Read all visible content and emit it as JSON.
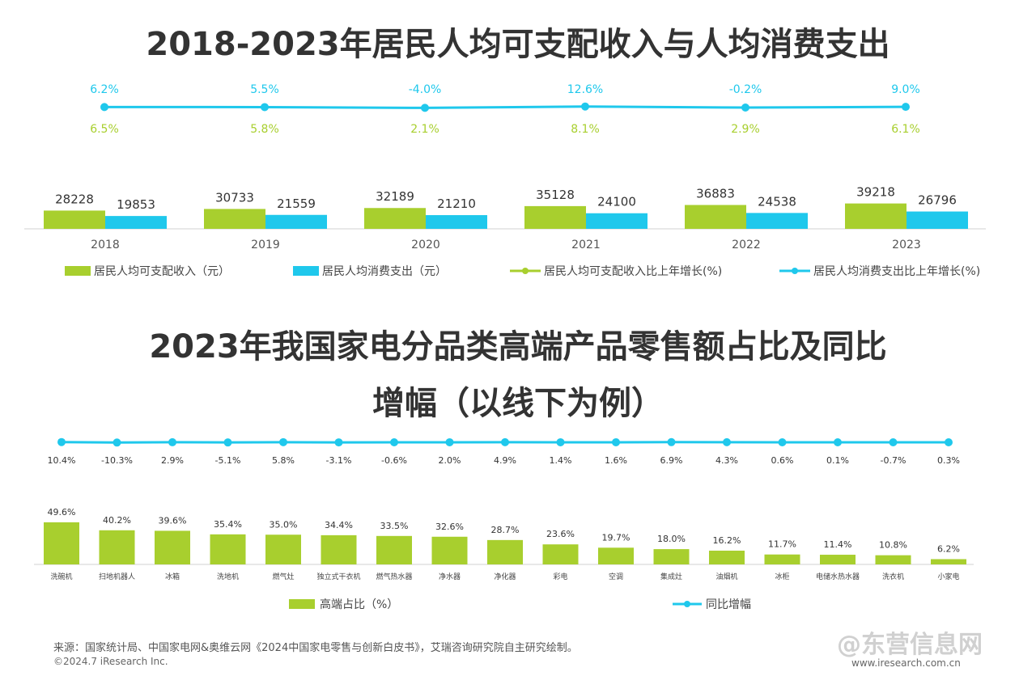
{
  "colors": {
    "green": "#a8cf2e",
    "blue": "#1fc8ec",
    "text": "#333333",
    "axis": "#d0d0d0"
  },
  "chart_data": [
    {
      "type": "bar",
      "title": "2018-2023年居民人均可支配收入与人均消费支出",
      "categories": [
        "2018",
        "2019",
        "2020",
        "2021",
        "2022",
        "2023"
      ],
      "series": [
        {
          "name": "居民人均可支配收入（元）",
          "kind": "bar",
          "color": "#a8cf2e",
          "values": [
            28228,
            30733,
            32189,
            35128,
            36883,
            39218
          ]
        },
        {
          "name": "居民人均消费支出（元）",
          "kind": "bar",
          "color": "#1fc8ec",
          "values": [
            19853,
            21559,
            21210,
            24100,
            24538,
            26796
          ]
        },
        {
          "name": "居民人均可支配收入比上年增长(%)",
          "kind": "line",
          "color": "#a8cf2e",
          "values": [
            6.5,
            5.8,
            2.1,
            8.1,
            2.9,
            6.1
          ],
          "labels": [
            "6.5%",
            "5.8%",
            "2.1%",
            "8.1%",
            "2.9%",
            "6.1%"
          ]
        },
        {
          "name": "居民人均消费支出比上年增长(%)",
          "kind": "line",
          "color": "#1fc8ec",
          "values": [
            6.2,
            5.5,
            -4.0,
            12.6,
            -0.2,
            9.0
          ],
          "labels": [
            "6.2%",
            "5.5%",
            "-4.0%",
            "12.6%",
            "-0.2%",
            "9.0%"
          ]
        }
      ],
      "legend": "bottom"
    },
    {
      "type": "bar",
      "title": "2023年我国家电分品类高端产品零售额占比及同比增幅（以线下为例）",
      "categories": [
        "洗碗机",
        "扫地机器人",
        "冰箱",
        "洗地机",
        "燃气灶",
        "独立式干衣机",
        "燃气热水器",
        "净水器",
        "净化器",
        "彩电",
        "空调",
        "集成灶",
        "油烟机",
        "冰柜",
        "电储水热水器",
        "洗衣机",
        "小家电"
      ],
      "series": [
        {
          "name": "高端占比（%）",
          "kind": "bar",
          "color": "#a8cf2e",
          "values": [
            49.6,
            40.2,
            39.6,
            35.4,
            35.0,
            34.4,
            33.5,
            32.6,
            28.7,
            23.6,
            19.7,
            18.0,
            16.2,
            11.7,
            11.4,
            10.8,
            6.2
          ],
          "labels": [
            "49.6%",
            "40.2%",
            "39.6%",
            "35.4%",
            "35.0%",
            "34.4%",
            "33.5%",
            "32.6%",
            "28.7%",
            "23.6%",
            "19.7%",
            "18.0%",
            "16.2%",
            "11.7%",
            "11.4%",
            "10.8%",
            "6.2%"
          ]
        },
        {
          "name": "同比增幅",
          "kind": "line",
          "color": "#1fc8ec",
          "values": [
            10.4,
            -10.3,
            2.9,
            -5.1,
            5.8,
            -3.1,
            -0.6,
            2.0,
            4.9,
            1.4,
            1.6,
            6.9,
            4.3,
            0.6,
            0.1,
            -0.7,
            0.3
          ],
          "labels": [
            "10.4%",
            "-10.3%",
            "2.9%",
            "-5.1%",
            "5.8%",
            "-3.1%",
            "-0.6%",
            "2.0%",
            "4.9%",
            "1.4%",
            "1.6%",
            "6.9%",
            "4.3%",
            "0.6%",
            "0.1%",
            "-0.7%",
            "0.3%"
          ]
        }
      ],
      "legend": "bottom"
    }
  ],
  "titles": {
    "chart1": "2018-2023年居民人均可支配收入与人均消费支出",
    "chart2_line1": "2023年我国家电分品类高端产品零售额占比及同比",
    "chart2_line2": "增幅（以线下为例）"
  },
  "footer": {
    "source": "来源：国家统计局、中国家电网&奥维云网《2024中国家电零售与创新白皮书》，艾瑞咨询研究院自主研究绘制。",
    "copyright": "©2024.7 iResearch Inc.",
    "website": "www.iresearch.com.cn",
    "watermark": "@东营信息网"
  }
}
